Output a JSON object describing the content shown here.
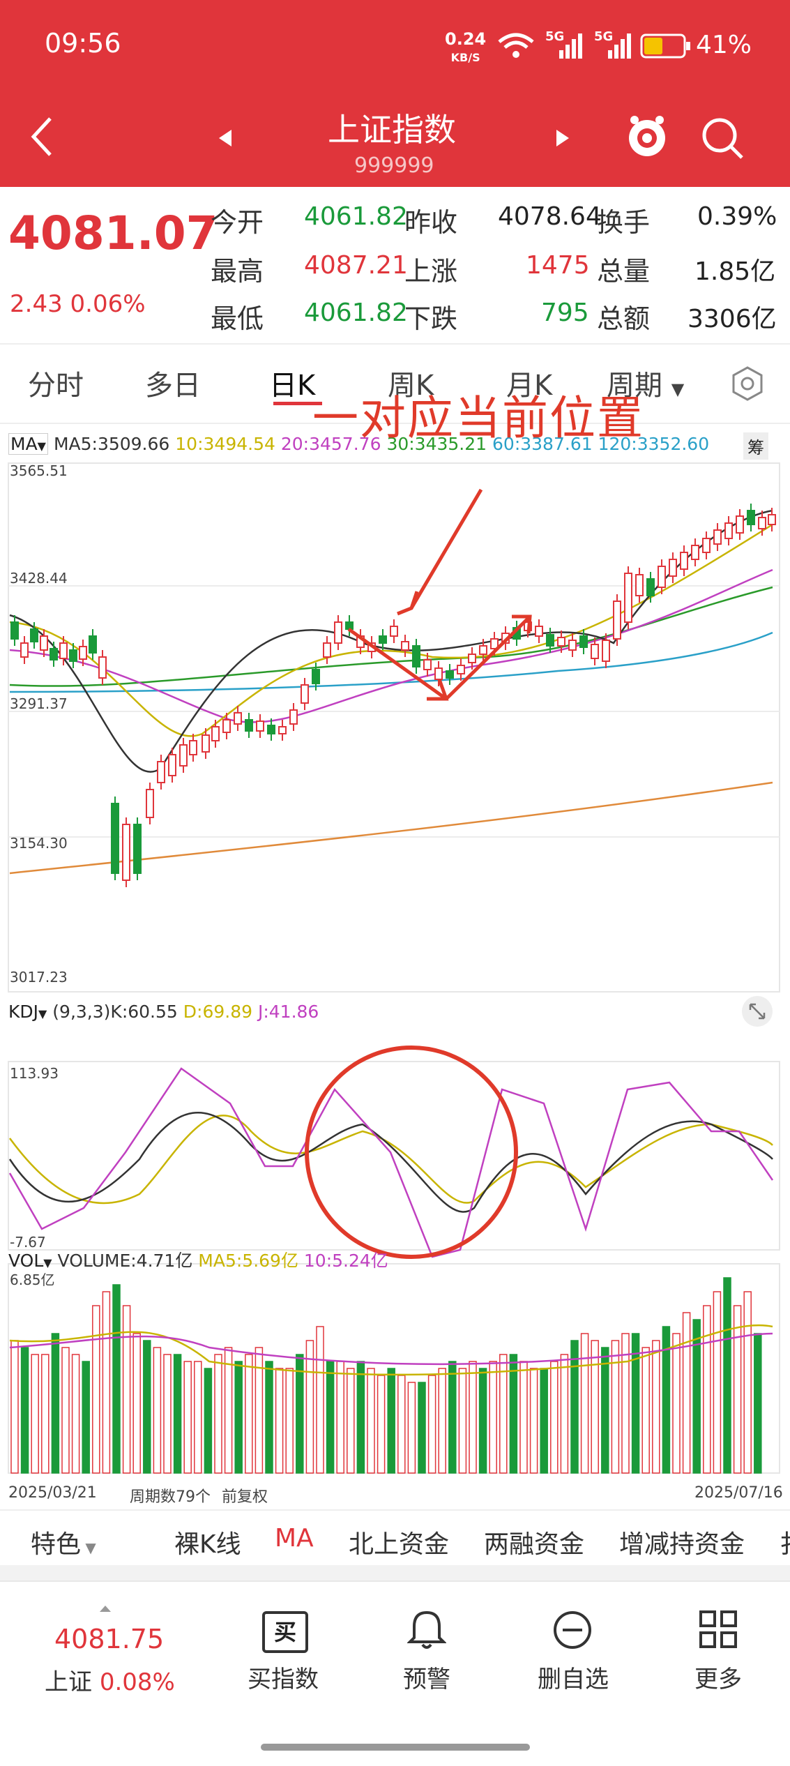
{
  "status": {
    "time": "09:56",
    "net_speed": "0.24",
    "net_unit": "KB/S",
    "battery": "41%",
    "sig1": "5G",
    "sig2": "5G"
  },
  "header": {
    "title": "上证指数",
    "code": "999999"
  },
  "quote": {
    "price": "4081.07",
    "change": "2.43",
    "change_pct": "0.06%",
    "labels": {
      "open": "今开",
      "prev": "昨收",
      "turn": "换手",
      "high": "最高",
      "up": "上涨",
      "vol": "总量",
      "low": "最低",
      "down": "下跌",
      "amt": "总额"
    },
    "open": "4061.82",
    "prev_close": "4078.64",
    "turnover": "0.39%",
    "high": "4087.21",
    "up": "1475",
    "volume": "1.85亿",
    "low": "4061.82",
    "down": "795",
    "amount": "3306亿"
  },
  "tabs": [
    "分时",
    "多日",
    "日K",
    "周K",
    "月K",
    "周期"
  ],
  "active_tab": "日K",
  "ma_bar": {
    "label": "MA",
    "ma5": "MA5:3509.66",
    "ma10": "10:3494.54",
    "ma20": "20:3457.76",
    "ma30": "30:3435.21",
    "ma60": "60:3387.61",
    "ma120": "120:3352.60",
    "btn": "筹"
  },
  "price_axis": [
    "3565.51",
    "3428.44",
    "3291.37",
    "3154.30",
    "3017.23"
  ],
  "annotation": "一对应当前位置",
  "kdj_bar": {
    "label": "KDJ",
    "params": "(9,3,3)",
    "k": "K:60.55",
    "d": "D:69.89",
    "j": "J:41.86"
  },
  "kdj_axis": [
    "113.93",
    "-7.67"
  ],
  "vol_bar": {
    "label": "VOL",
    "volume": "VOLUME:4.71亿",
    "ma5": "MA5:5.69亿",
    "ma10": "10:5.24亿"
  },
  "vol_axis": [
    "6.85亿"
  ],
  "footer": {
    "start": "2025/03/21",
    "period": "周期数79个",
    "adj": "前复权",
    "end": "2025/07/16"
  },
  "feature_bar": [
    "特色",
    "裸K线",
    "MA",
    "北上资金",
    "两融资金",
    "增减持资金",
    "扌"
  ],
  "bottom": {
    "price": "4081.75",
    "name": "上证",
    "pct": "0.08%",
    "buy": "买指数",
    "buy_icon": "买",
    "alert": "预警",
    "del": "删自选",
    "more": "更多"
  },
  "colors": {
    "red": "#e0353b",
    "green": "#1a9a3a",
    "ma5": "#333333",
    "ma10": "#c8b400",
    "ma20": "#c040c0",
    "ma30": "#2a9a2a",
    "ma60": "#2aa0c8",
    "ma120": "#e08a3a"
  }
}
